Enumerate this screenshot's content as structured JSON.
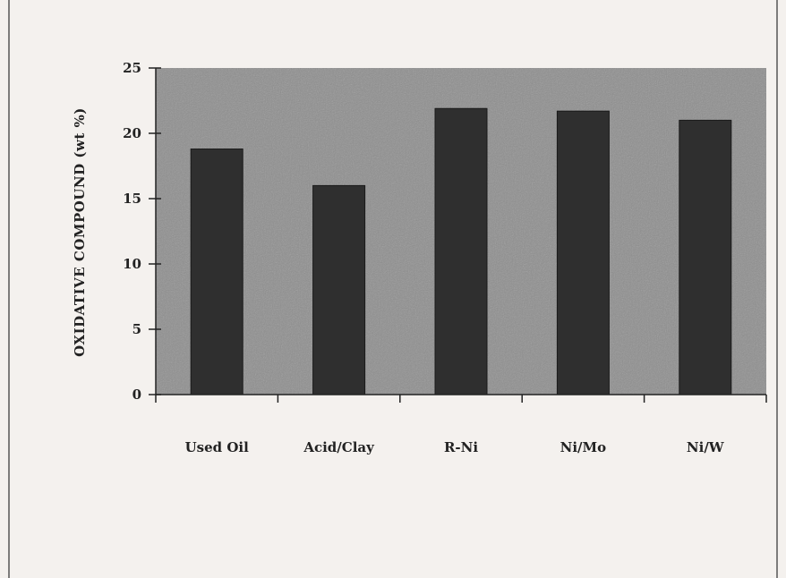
{
  "chart_data": {
    "type": "bar",
    "title": "",
    "xlabel": "",
    "ylabel": "OXIDATIVE  COMPOUND (wt %)",
    "categories": [
      "Used Oil",
      "Acid/Clay",
      "R-Ni",
      "Ni/Mo",
      "Ni/W"
    ],
    "values": [
      18.8,
      16.0,
      21.9,
      21.7,
      21.0
    ],
    "ylim": [
      0,
      25
    ],
    "yticks": [
      0,
      5,
      10,
      15,
      20,
      25
    ],
    "grid": false,
    "legend": "none",
    "colors": {
      "bar": "#2f2f2f",
      "plot_background": "#8e8e8e",
      "page_background": "#f4f1ee",
      "axis": "#222222"
    }
  }
}
